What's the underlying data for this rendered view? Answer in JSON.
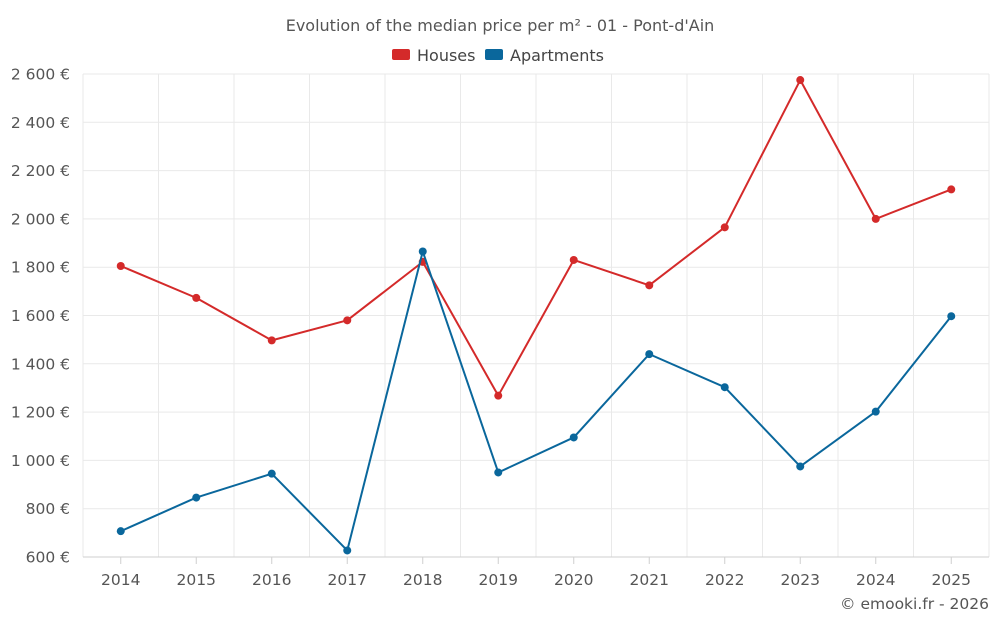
{
  "chart_data": {
    "type": "line",
    "title": "Evolution of the median price per m² - 01 - Pont-d'Ain",
    "categories": [
      "2014",
      "2015",
      "2016",
      "2017",
      "2018",
      "2019",
      "2020",
      "2021",
      "2022",
      "2023",
      "2024",
      "2025"
    ],
    "series": [
      {
        "name": "Houses",
        "color": "#d42a2a",
        "values": [
          1805,
          1673,
          1497,
          1580,
          1822,
          1268,
          1830,
          1725,
          1965,
          2575,
          2000,
          2122
        ]
      },
      {
        "name": "Apartments",
        "color": "#0a679c",
        "values": [
          707,
          846,
          945,
          627,
          1865,
          950,
          1095,
          1440,
          1303,
          975,
          1202,
          1597
        ]
      }
    ],
    "ylim": [
      600,
      2600
    ],
    "yticks": [
      600,
      800,
      1000,
      1200,
      1400,
      1600,
      1800,
      2000,
      2200,
      2400,
      2600
    ],
    "ytick_labels": [
      "600 €",
      "800 €",
      "1 000 €",
      "1 200 €",
      "1 400 €",
      "1 600 €",
      "1 800 €",
      "2 000 €",
      "2 200 €",
      "2 400 €",
      "2 600 €"
    ],
    "xlabel": "",
    "ylabel": "",
    "grid": true,
    "legend_position": "top-center"
  },
  "credit": "© emooki.fr - 2026"
}
